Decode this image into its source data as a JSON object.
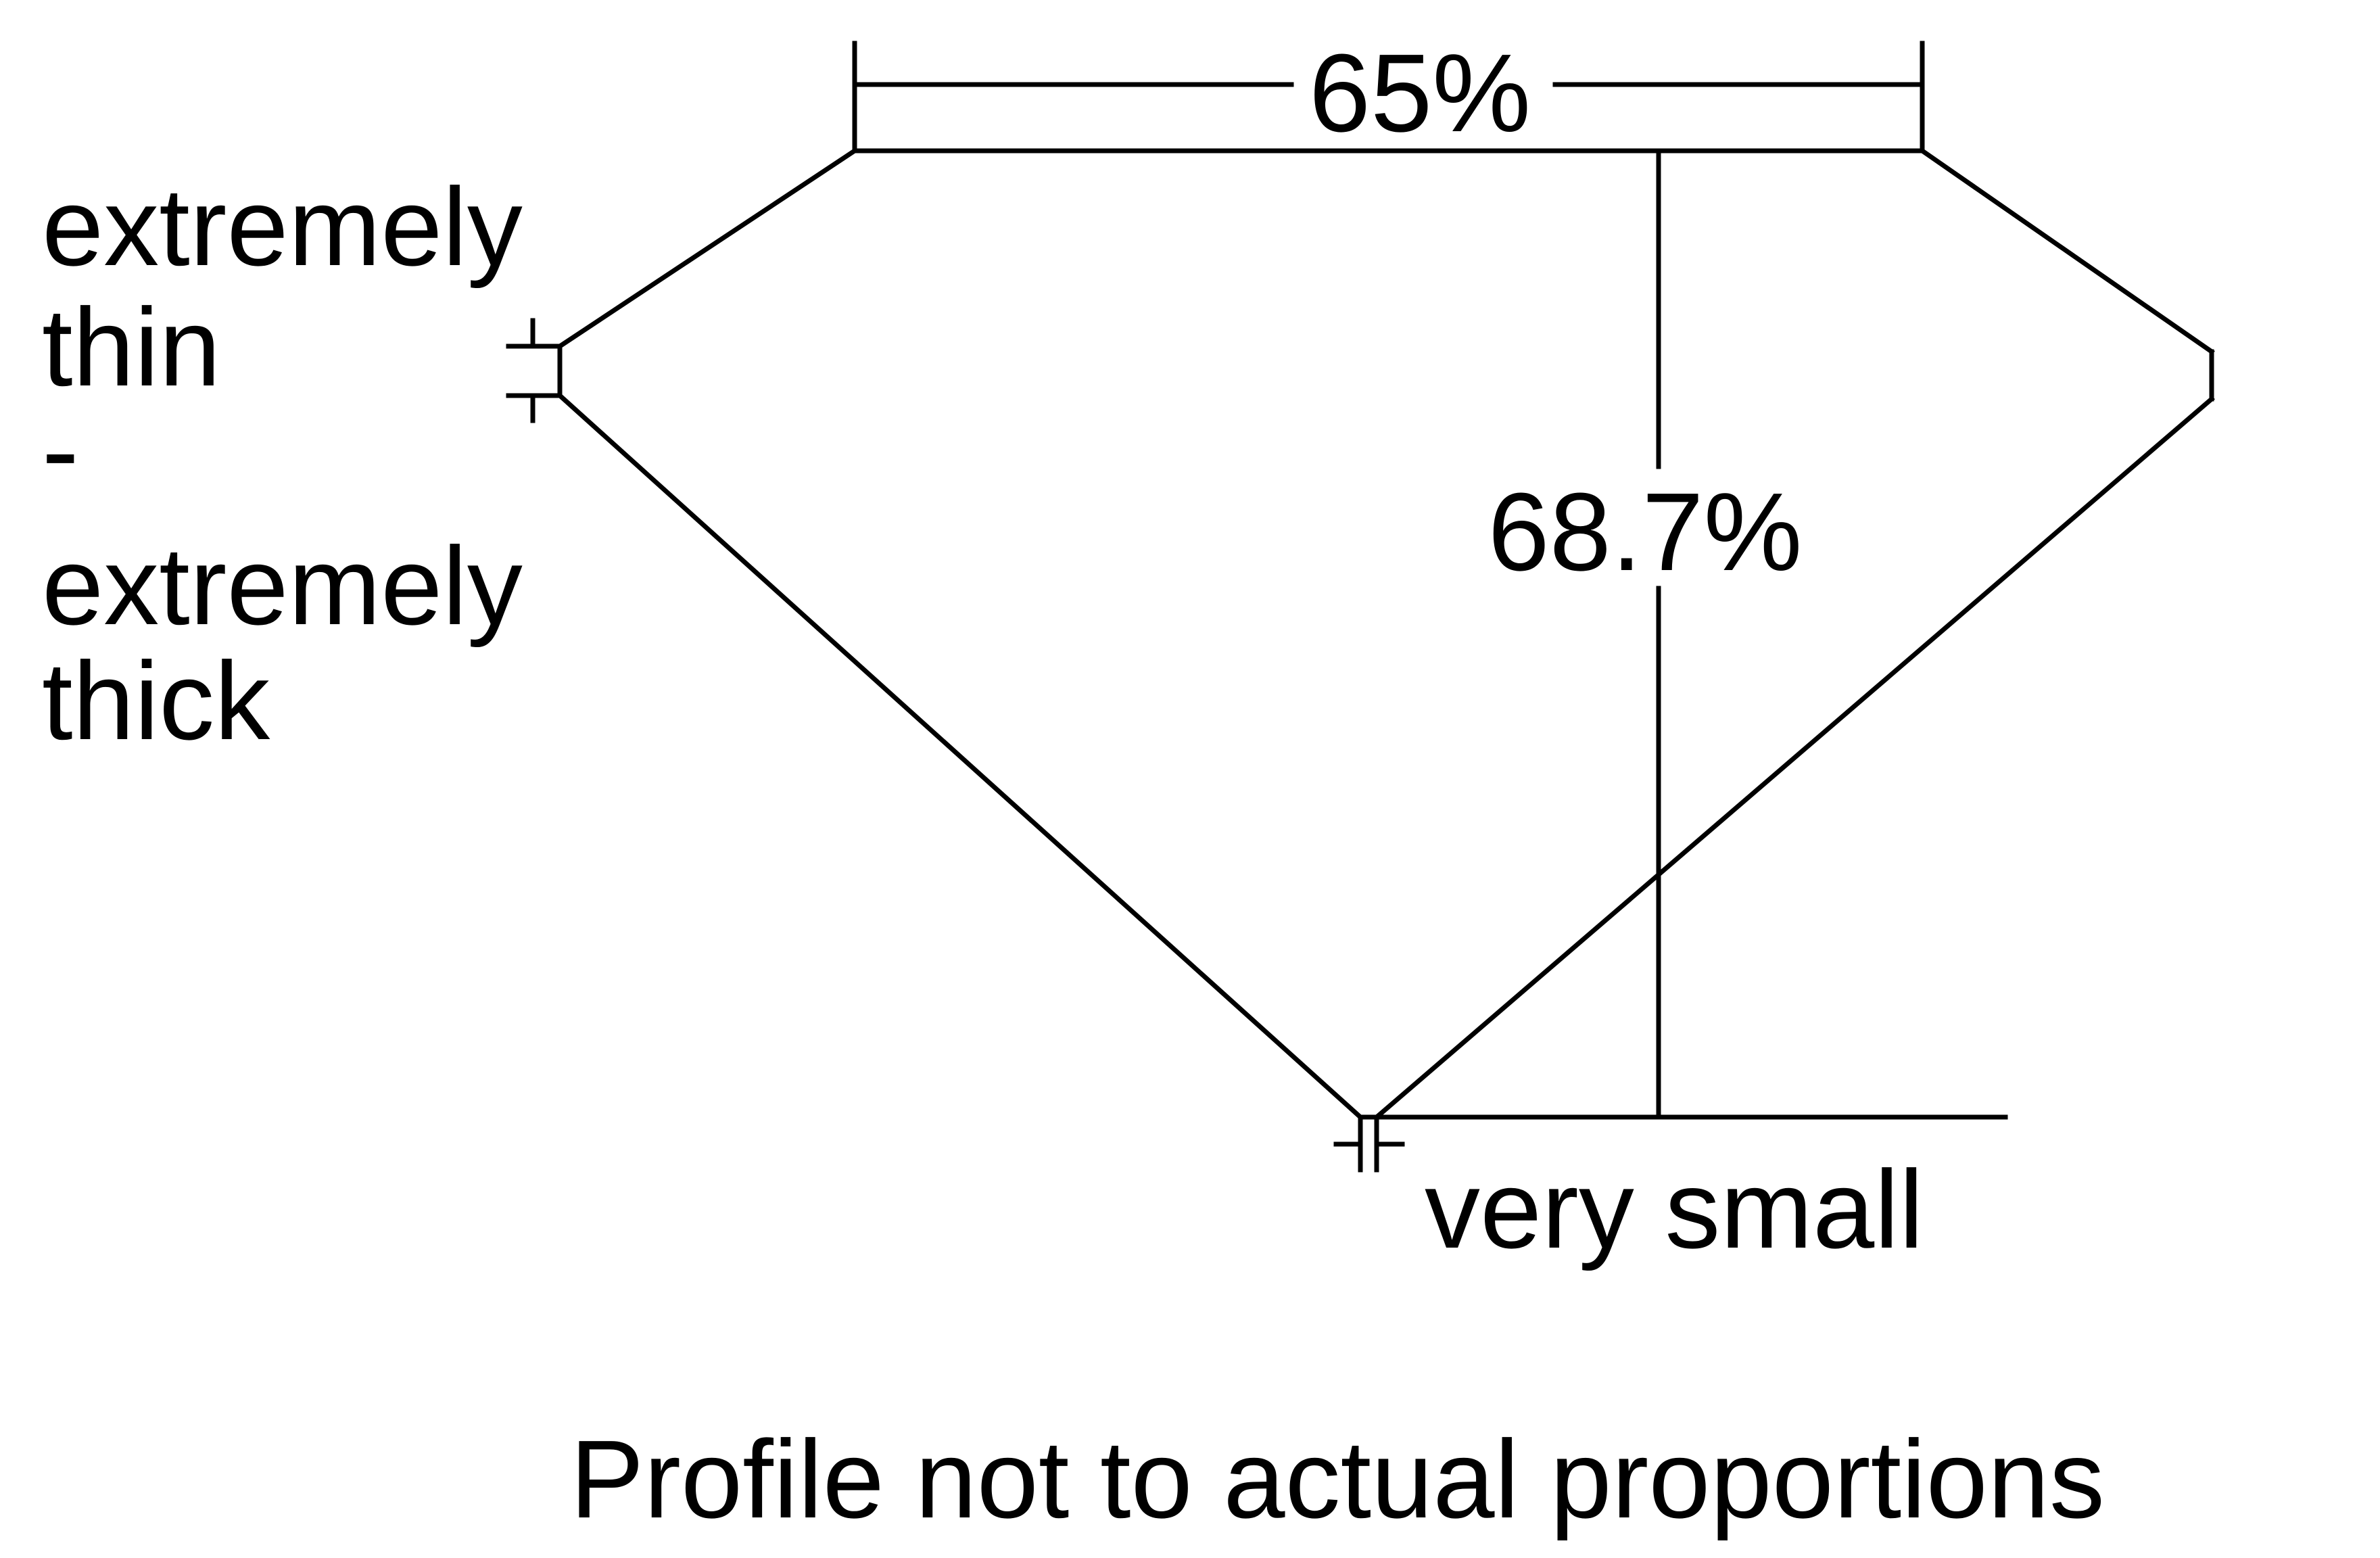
{
  "diagram": {
    "table_percent": "65%",
    "depth_percent": "68.7%",
    "girdle_label": [
      "extremely",
      "thin",
      "-",
      "extremely",
      "thick"
    ],
    "culet_label": "very small",
    "footnote": "Profile not to actual proportions",
    "line_color": "#000000",
    "background": "#ffffff"
  }
}
